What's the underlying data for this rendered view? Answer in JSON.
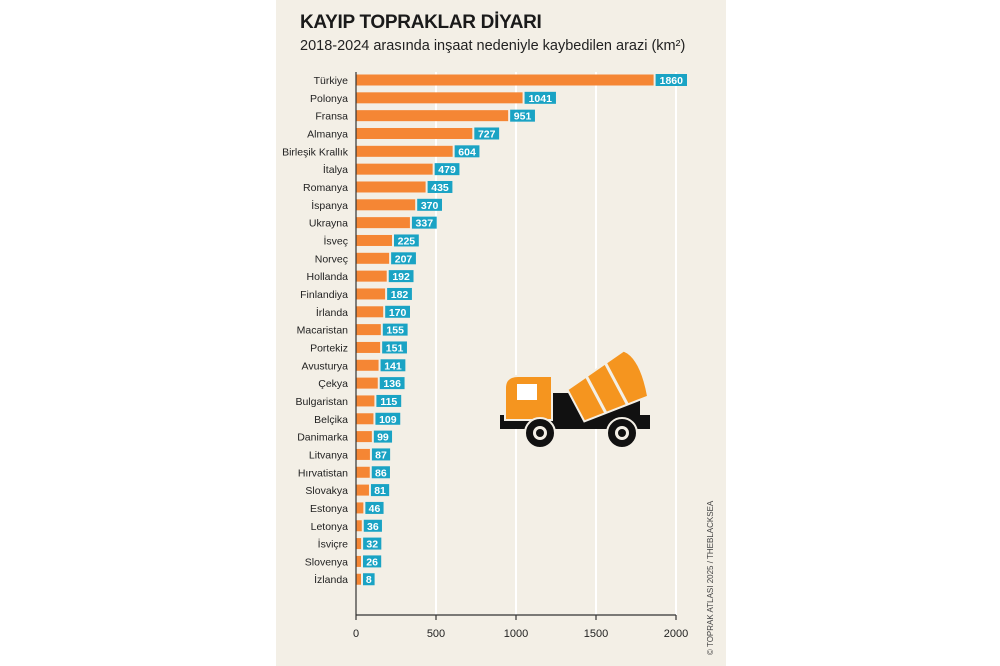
{
  "title": "KAYIP TOPRAKLAR DİYARI",
  "subtitle": "2018-2024 arasında inşaat nedeniyle kaybedilen arazi (km²)",
  "credit": "© TOPRAK ATLASI 2025 / THEBLACKSEA",
  "colors": {
    "bar": "#f58634",
    "label_bg": "#1aa3c4",
    "background": "#f3efe6",
    "grid": "#ffffff"
  },
  "icon": "cement-mixer-truck-icon",
  "chart_data": {
    "type": "bar",
    "orientation": "horizontal",
    "title": "KAYIP TOPRAKLAR DİYARI",
    "subtitle": "2018-2024 arasında inşaat nedeniyle kaybedilen arazi (km²)",
    "categories": [
      "Türkiye",
      "Polonya",
      "Fransa",
      "Almanya",
      "Birleşik Krallık",
      "İtalya",
      "Romanya",
      "İspanya",
      "Ukrayna",
      "İsveç",
      "Norveç",
      "Hollanda",
      "Finlandiya",
      "İrlanda",
      "Macaristan",
      "Portekiz",
      "Avusturya",
      "Çekya",
      "Bulgaristan",
      "Belçika",
      "Danimarka",
      "Litvanya",
      "Hırvatistan",
      "Slovakya",
      "Estonya",
      "Letonya",
      "İsviçre",
      "Slovenya",
      "İzlanda"
    ],
    "values": [
      1860,
      1041,
      951,
      727,
      604,
      479,
      435,
      370,
      337,
      225,
      207,
      192,
      182,
      170,
      155,
      151,
      141,
      136,
      115,
      109,
      99,
      87,
      86,
      81,
      46,
      36,
      32,
      26,
      8
    ],
    "xlim": [
      0,
      2000
    ],
    "xticks": [
      0,
      500,
      1000,
      1500,
      2000
    ],
    "grid": true
  }
}
